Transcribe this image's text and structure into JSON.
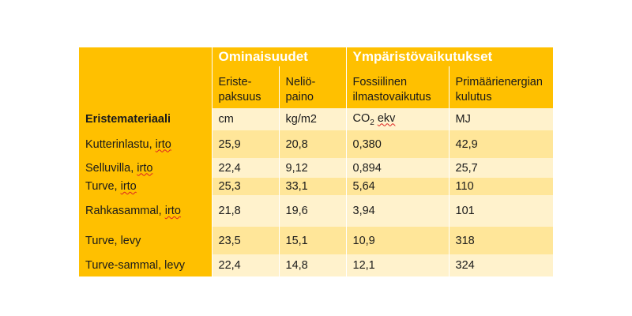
{
  "table": {
    "group_headers": {
      "properties": "Ominaisuudet",
      "environment": "Ympäristövaikutukset"
    },
    "columns": [
      {
        "line1": "Eriste-",
        "line2": "paksuus",
        "unit": "cm"
      },
      {
        "line1": "Neliö-",
        "line2": "paino",
        "unit": "kg/m2"
      },
      {
        "line1": "Fossiilinen",
        "line2": "ilmastovaikutus",
        "unit_main": "CO",
        "unit_sub": "2",
        "unit_tail": "ekv"
      },
      {
        "line1": "Primäärienergian",
        "line2": "kulutus",
        "unit": "MJ"
      }
    ],
    "row_header_label": "Eristemateriaali",
    "rows": [
      {
        "label_main": "Kutterinlastu, ",
        "label_flag": "irto",
        "values": [
          "25,9",
          "20,8",
          "0,380",
          "42,9"
        ]
      },
      {
        "label_main": "Selluvilla, ",
        "label_flag": "irto",
        "values": [
          "22,4",
          "9,12",
          "0,894",
          "25,7"
        ]
      },
      {
        "label_main": "Turve, ",
        "label_flag": "irto",
        "values": [
          "25,3",
          "33,1",
          "5,64",
          "110"
        ]
      },
      {
        "label_main": "Rahkasammal, ",
        "label_flag": "irto",
        "values": [
          "21,8",
          "19,6",
          "3,94",
          "101"
        ]
      },
      {
        "label_main": "Turve, levy",
        "label_flag": "",
        "values": [
          "23,5",
          "15,1",
          "10,9",
          "318"
        ]
      },
      {
        "label_main": "Turve-sammal, levy",
        "label_flag": "",
        "values": [
          "22,4",
          "14,8",
          "12,1",
          "324"
        ]
      }
    ]
  }
}
